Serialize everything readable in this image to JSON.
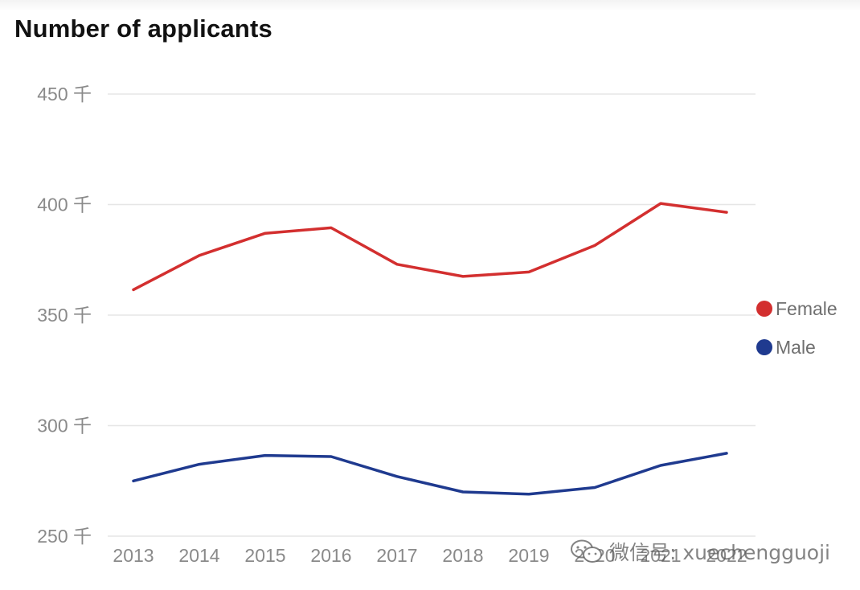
{
  "chart_data": {
    "type": "line",
    "title": "Number of applicants",
    "xlabel": "",
    "ylabel": "",
    "categories": [
      "2013",
      "2014",
      "2015",
      "2016",
      "2017",
      "2018",
      "2019",
      "2020",
      "2021",
      "2022"
    ],
    "series": [
      {
        "name": "Female",
        "color": "#d32f2f",
        "values": [
          361.5,
          377,
          387,
          389.5,
          373,
          367.5,
          369.5,
          381.5,
          400.5,
          396.5
        ]
      },
      {
        "name": "Male",
        "color": "#1f3a8f",
        "values": [
          275,
          282.5,
          286.5,
          286,
          277,
          270,
          269,
          272,
          282,
          287.5
        ]
      }
    ],
    "ylim": [
      250,
      450
    ],
    "yticks": [
      250,
      300,
      350,
      400,
      450
    ],
    "ytick_labels": [
      "250 千",
      "300 千",
      "350 千",
      "400 千",
      "450 千"
    ],
    "grid": true,
    "legend_position": "right"
  },
  "watermark": {
    "text": "微信号: xuechengguoji",
    "icon": "wechat-icon"
  }
}
